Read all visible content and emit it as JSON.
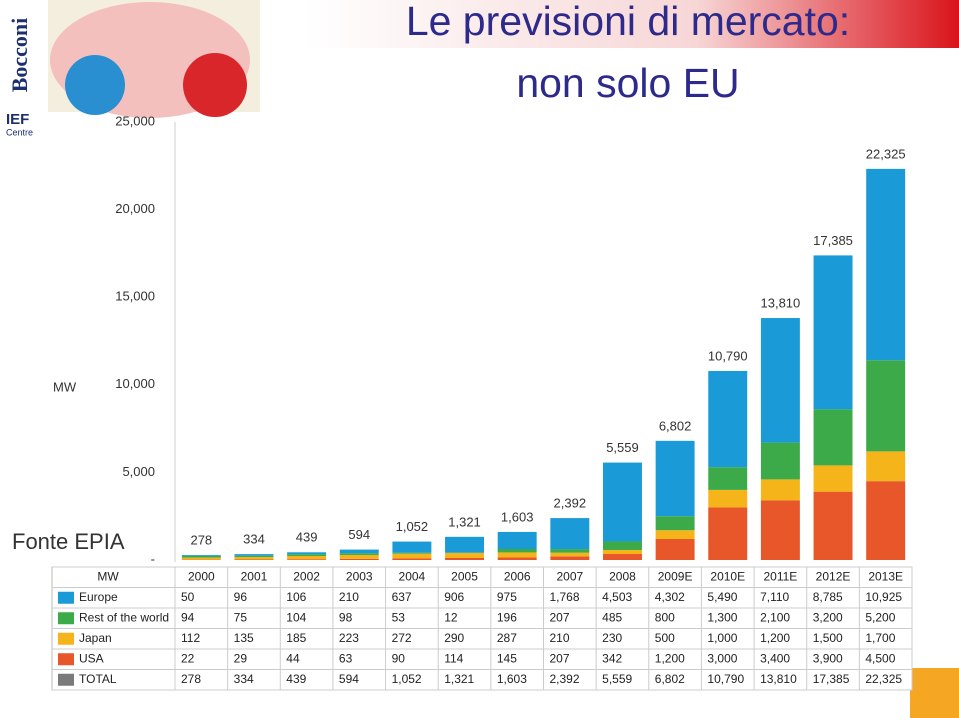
{
  "title_line1": "Le previsioni di mercato:",
  "title_line2": "non solo EU",
  "source": "Fonte EPIA",
  "logo": {
    "name": "Bocconi",
    "centre": "IEF",
    "centre_sub": "Centre"
  },
  "chart_data": {
    "type": "stacked_bar",
    "y_label": "MW",
    "total_name": "TOTAL",
    "total_color": "#7a7a7a",
    "categories": [
      "2000",
      "2001",
      "2002",
      "2003",
      "2004",
      "2005",
      "2006",
      "2007",
      "2008",
      "2009E",
      "2010E",
      "2011E",
      "2012E",
      "2013E"
    ],
    "ylim": [
      0,
      25000
    ],
    "yticks": [
      {
        "value": 0,
        "label": "-"
      },
      {
        "value": 5000,
        "label": "5,000"
      },
      {
        "value": 10000,
        "label": "10,000"
      },
      {
        "value": 15000,
        "label": "15,000"
      },
      {
        "value": 20000,
        "label": "20,000"
      },
      {
        "value": 25000,
        "label": "25,000"
      }
    ],
    "series": [
      {
        "name": "Europe",
        "color": "#1a9ad6",
        "values": [
          50,
          96,
          106,
          210,
          637,
          906,
          975,
          1768,
          4503,
          4302,
          5490,
          7110,
          8785,
          10925
        ],
        "value_labels": [
          "50",
          "96",
          "106",
          "210",
          "637",
          "906",
          "975",
          "1,768",
          "4,503",
          "4,302",
          "5,490",
          "7,110",
          "8,785",
          "10,925"
        ]
      },
      {
        "name": "Rest of the world",
        "color": "#3daa4a",
        "values": [
          94,
          75,
          104,
          98,
          53,
          12,
          196,
          207,
          485,
          800,
          1300,
          2100,
          3200,
          5200
        ],
        "value_labels": [
          "94",
          "75",
          "104",
          "98",
          "53",
          "12",
          "196",
          "207",
          "485",
          "800",
          "1,300",
          "2,100",
          "3,200",
          "5,200"
        ]
      },
      {
        "name": "Japan",
        "color": "#f5b41a",
        "values": [
          112,
          135,
          185,
          223,
          272,
          290,
          287,
          210,
          230,
          500,
          1000,
          1200,
          1500,
          1700
        ],
        "value_labels": [
          "112",
          "135",
          "185",
          "223",
          "272",
          "290",
          "287",
          "210",
          "230",
          "500",
          "1,000",
          "1,200",
          "1,500",
          "1,700"
        ]
      },
      {
        "name": "USA",
        "color": "#e8572a",
        "values": [
          22,
          29,
          44,
          63,
          90,
          114,
          145,
          207,
          342,
          1200,
          3000,
          3400,
          3900,
          4500
        ],
        "value_labels": [
          "22",
          "29",
          "44",
          "63",
          "90",
          "114",
          "145",
          "207",
          "342",
          "1,200",
          "3,000",
          "3,400",
          "3,900",
          "4,500"
        ]
      }
    ],
    "totals": [
      278,
      334,
      439,
      594,
      1052,
      1321,
      1603,
      2392,
      5559,
      6802,
      10790,
      13810,
      17385,
      22325
    ],
    "totals_labels": [
      "278",
      "334",
      "439",
      "594",
      "1,052",
      "1,321",
      "1,603",
      "2,392",
      "5,559",
      "6,802",
      "10,790",
      "13,810",
      "17,385",
      "22,325"
    ]
  }
}
